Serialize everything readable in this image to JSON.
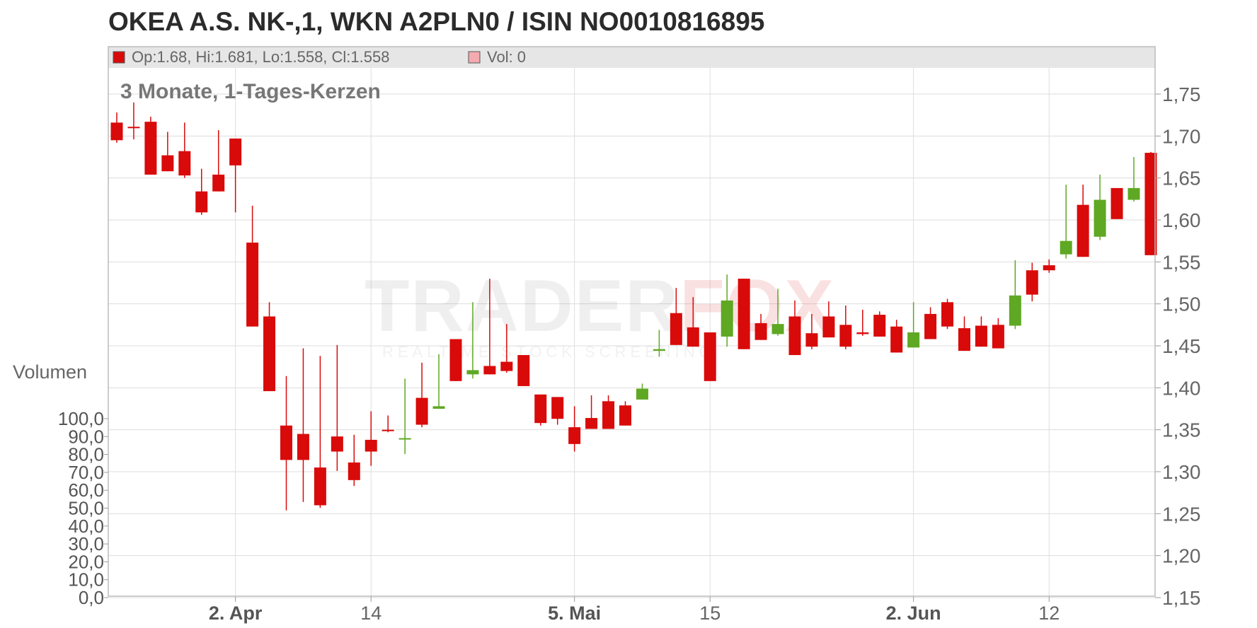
{
  "title": "OKEA A.S. NK-,1, WKN A2PLN0 / ISIN NO0010816895",
  "legend": {
    "ohlc": "Op:1.68, Hi:1.681, Lo:1.558, Cl:1.558",
    "volume": "Vol: 0"
  },
  "subtitle": "3 Monate, 1-Tages-Kerzen",
  "volume_label": "Volumen",
  "watermark": {
    "brand": "TRADERFOX",
    "tagline": "REALTIME STOCK SCREENING"
  },
  "colors": {
    "up": "#5fa823",
    "down": "#d90a0a",
    "grid": "#dddddd",
    "header": "#e6e6e6"
  },
  "chart_data": {
    "type": "candlestick",
    "price_axis": {
      "min": 1.15,
      "max": 1.75,
      "ticks": [
        "1,75",
        "1,70",
        "1,65",
        "1,60",
        "1,55",
        "1,50",
        "1,45",
        "1,40",
        "1,35",
        "1,30",
        "1,25",
        "1,20",
        "1,15"
      ]
    },
    "volume_axis": {
      "min": 0,
      "max": 100,
      "ticks": [
        "100,0",
        "90,0",
        "80,0",
        "70,0",
        "60,0",
        "50,0",
        "40,0",
        "30,0",
        "20,0",
        "10,0",
        "0,0"
      ]
    },
    "x_labels": [
      {
        "label": "2. Apr",
        "index": 7,
        "bold": true
      },
      {
        "label": "14",
        "index": 15,
        "bold": false
      },
      {
        "label": "5. Mai",
        "index": 27,
        "bold": true
      },
      {
        "label": "15",
        "index": 35,
        "bold": false
      },
      {
        "label": "2. Jun",
        "index": 47,
        "bold": true
      },
      {
        "label": "12",
        "index": 55,
        "bold": false
      }
    ],
    "candles": [
      {
        "o": 1.716,
        "h": 1.728,
        "l": 1.692,
        "c": 1.695
      },
      {
        "o": 1.711,
        "h": 1.74,
        "l": 1.696,
        "c": 1.71
      },
      {
        "o": 1.717,
        "h": 1.723,
        "l": 1.654,
        "c": 1.654
      },
      {
        "o": 1.677,
        "h": 1.705,
        "l": 1.658,
        "c": 1.658
      },
      {
        "o": 1.682,
        "h": 1.716,
        "l": 1.65,
        "c": 1.653
      },
      {
        "o": 1.634,
        "h": 1.661,
        "l": 1.606,
        "c": 1.609
      },
      {
        "o": 1.654,
        "h": 1.707,
        "l": 1.634,
        "c": 1.634
      },
      {
        "o": 1.697,
        "h": 1.697,
        "l": 1.609,
        "c": 1.665
      },
      {
        "o": 1.573,
        "h": 1.617,
        "l": 1.473,
        "c": 1.473
      },
      {
        "o": 1.485,
        "h": 1.502,
        "l": 1.396,
        "c": 1.396
      },
      {
        "o": 1.355,
        "h": 1.414,
        "l": 1.254,
        "c": 1.314
      },
      {
        "o": 1.345,
        "h": 1.447,
        "l": 1.264,
        "c": 1.314
      },
      {
        "o": 1.305,
        "h": 1.438,
        "l": 1.257,
        "c": 1.26
      },
      {
        "o": 1.342,
        "h": 1.451,
        "l": 1.301,
        "c": 1.324
      },
      {
        "o": 1.311,
        "h": 1.344,
        "l": 1.283,
        "c": 1.29
      },
      {
        "o": 1.338,
        "h": 1.372,
        "l": 1.307,
        "c": 1.324
      },
      {
        "o": 1.35,
        "h": 1.367,
        "l": 1.347,
        "c": 1.35
      },
      {
        "o": 1.339,
        "h": 1.411,
        "l": 1.321,
        "c": 1.34
      },
      {
        "o": 1.388,
        "h": 1.43,
        "l": 1.353,
        "c": 1.356
      },
      {
        "o": 1.375,
        "h": 1.44,
        "l": 1.375,
        "c": 1.378
      },
      {
        "o": 1.458,
        "h": 1.458,
        "l": 1.408,
        "c": 1.408
      },
      {
        "o": 1.416,
        "h": 1.502,
        "l": 1.411,
        "c": 1.421
      },
      {
        "o": 1.426,
        "h": 1.53,
        "l": 1.416,
        "c": 1.416
      },
      {
        "o": 1.431,
        "h": 1.476,
        "l": 1.418,
        "c": 1.42
      },
      {
        "o": 1.439,
        "h": 1.439,
        "l": 1.402,
        "c": 1.402
      },
      {
        "o": 1.392,
        "h": 1.392,
        "l": 1.355,
        "c": 1.358
      },
      {
        "o": 1.389,
        "h": 1.389,
        "l": 1.356,
        "c": 1.363
      },
      {
        "o": 1.353,
        "h": 1.378,
        "l": 1.324,
        "c": 1.333
      },
      {
        "o": 1.364,
        "h": 1.391,
        "l": 1.351,
        "c": 1.351
      },
      {
        "o": 1.384,
        "h": 1.391,
        "l": 1.351,
        "c": 1.351
      },
      {
        "o": 1.379,
        "h": 1.384,
        "l": 1.355,
        "c": 1.355
      },
      {
        "o": 1.386,
        "h": 1.405,
        "l": 1.386,
        "c": 1.399
      },
      {
        "o": 1.444,
        "h": 1.469,
        "l": 1.437,
        "c": 1.446
      },
      {
        "o": 1.489,
        "h": 1.519,
        "l": 1.451,
        "c": 1.451
      },
      {
        "o": 1.472,
        "h": 1.508,
        "l": 1.449,
        "c": 1.449
      },
      {
        "o": 1.466,
        "h": 1.466,
        "l": 1.408,
        "c": 1.408
      },
      {
        "o": 1.461,
        "h": 1.535,
        "l": 1.449,
        "c": 1.504
      },
      {
        "o": 1.53,
        "h": 1.53,
        "l": 1.446,
        "c": 1.446
      },
      {
        "o": 1.477,
        "h": 1.488,
        "l": 1.457,
        "c": 1.457
      },
      {
        "o": 1.464,
        "h": 1.518,
        "l": 1.462,
        "c": 1.476
      },
      {
        "o": 1.485,
        "h": 1.504,
        "l": 1.439,
        "c": 1.439
      },
      {
        "o": 1.465,
        "h": 1.488,
        "l": 1.446,
        "c": 1.449
      },
      {
        "o": 1.485,
        "h": 1.503,
        "l": 1.46,
        "c": 1.46
      },
      {
        "o": 1.475,
        "h": 1.498,
        "l": 1.446,
        "c": 1.449
      },
      {
        "o": 1.466,
        "h": 1.493,
        "l": 1.462,
        "c": 1.464
      },
      {
        "o": 1.487,
        "h": 1.491,
        "l": 1.461,
        "c": 1.461
      },
      {
        "o": 1.473,
        "h": 1.481,
        "l": 1.442,
        "c": 1.442
      },
      {
        "o": 1.448,
        "h": 1.502,
        "l": 1.448,
        "c": 1.466
      },
      {
        "o": 1.488,
        "h": 1.496,
        "l": 1.458,
        "c": 1.458
      },
      {
        "o": 1.502,
        "h": 1.506,
        "l": 1.47,
        "c": 1.473
      },
      {
        "o": 1.471,
        "h": 1.485,
        "l": 1.444,
        "c": 1.444
      },
      {
        "o": 1.474,
        "h": 1.485,
        "l": 1.449,
        "c": 1.449
      },
      {
        "o": 1.475,
        "h": 1.483,
        "l": 1.447,
        "c": 1.447
      },
      {
        "o": 1.474,
        "h": 1.552,
        "l": 1.47,
        "c": 1.51
      },
      {
        "o": 1.54,
        "h": 1.549,
        "l": 1.503,
        "c": 1.511
      },
      {
        "o": 1.546,
        "h": 1.553,
        "l": 1.537,
        "c": 1.54
      },
      {
        "o": 1.559,
        "h": 1.642,
        "l": 1.554,
        "c": 1.575
      },
      {
        "o": 1.618,
        "h": 1.642,
        "l": 1.556,
        "c": 1.556
      },
      {
        "o": 1.58,
        "h": 1.654,
        "l": 1.576,
        "c": 1.624
      },
      {
        "o": 1.638,
        "h": 1.638,
        "l": 1.601,
        "c": 1.601
      },
      {
        "o": 1.624,
        "h": 1.675,
        "l": 1.622,
        "c": 1.638
      },
      {
        "o": 1.68,
        "h": 1.681,
        "l": 1.558,
        "c": 1.558
      }
    ]
  }
}
